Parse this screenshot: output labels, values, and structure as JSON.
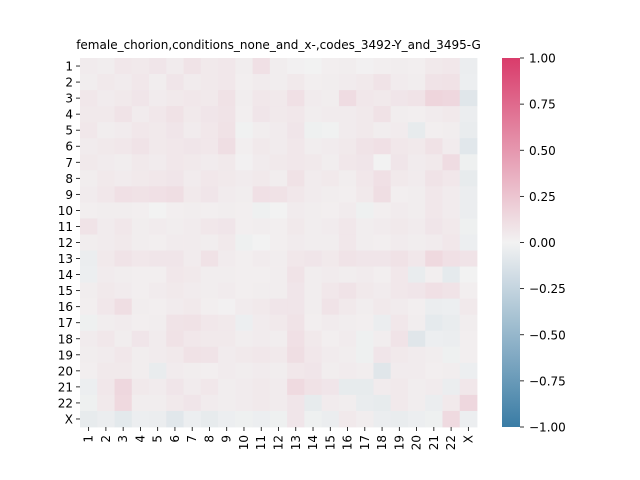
{
  "chart_data": {
    "type": "heatmap",
    "title": "female_chorion,conditions_none_and_x-,codes_3492-Y_and_3495-G",
    "xlabel": "",
    "ylabel": "",
    "x_categories": [
      "1",
      "2",
      "3",
      "4",
      "5",
      "6",
      "7",
      "8",
      "9",
      "10",
      "11",
      "12",
      "13",
      "14",
      "15",
      "16",
      "17",
      "18",
      "19",
      "20",
      "21",
      "22",
      "X"
    ],
    "y_categories": [
      "1",
      "2",
      "3",
      "4",
      "5",
      "6",
      "7",
      "8",
      "9",
      "10",
      "11",
      "12",
      "13",
      "14",
      "15",
      "16",
      "17",
      "18",
      "19",
      "20",
      "21",
      "22",
      "X"
    ],
    "colorbar": {
      "min": -1.0,
      "max": 1.0,
      "ticks": [
        -1.0,
        -0.75,
        -0.5,
        -0.25,
        0.0,
        0.25,
        0.5,
        0.75,
        1.0
      ],
      "tick_labels": [
        "−1.00",
        "−0.75",
        "−0.50",
        "−0.25",
        "0.00",
        "0.25",
        "0.50",
        "0.75",
        "1.00"
      ],
      "colors": {
        "low": "#3a7ca5",
        "mid": "#f2f2f2",
        "high": "#d93c6b"
      }
    },
    "values": [
      [
        0.04,
        0.03,
        0.06,
        0.05,
        0.07,
        0.04,
        0.08,
        0.05,
        0.06,
        0.03,
        0.1,
        0.03,
        0.01,
        0.0,
        0.02,
        0.03,
        0.01,
        0.02,
        0.03,
        0.02,
        0.05,
        0.06,
        -0.04
      ],
      [
        0.03,
        0.05,
        0.04,
        0.06,
        0.03,
        0.07,
        0.04,
        0.05,
        0.06,
        0.02,
        0.04,
        0.03,
        0.05,
        0.02,
        0.03,
        0.04,
        0.05,
        0.08,
        0.04,
        0.03,
        0.08,
        0.09,
        -0.03
      ],
      [
        0.06,
        0.04,
        0.05,
        0.07,
        0.04,
        0.05,
        0.06,
        0.05,
        0.09,
        0.03,
        0.06,
        0.05,
        0.1,
        0.04,
        0.03,
        0.12,
        0.06,
        0.05,
        0.07,
        0.08,
        0.16,
        0.15,
        -0.1
      ],
      [
        0.05,
        0.05,
        0.08,
        0.04,
        0.06,
        0.09,
        0.05,
        0.07,
        0.08,
        0.02,
        0.07,
        0.05,
        0.06,
        0.03,
        0.04,
        0.04,
        0.05,
        0.09,
        0.03,
        0.02,
        0.04,
        0.05,
        -0.04
      ],
      [
        0.06,
        0.03,
        0.04,
        0.06,
        0.05,
        0.07,
        0.04,
        0.06,
        0.09,
        -0.01,
        0.03,
        0.04,
        0.07,
        -0.02,
        -0.01,
        0.04,
        0.05,
        0.03,
        0.04,
        -0.06,
        0.02,
        0.03,
        -0.05
      ],
      [
        0.04,
        0.05,
        0.06,
        0.08,
        0.05,
        0.06,
        0.07,
        0.06,
        0.11,
        0.02,
        0.05,
        0.04,
        0.06,
        0.03,
        0.04,
        0.05,
        0.08,
        0.1,
        0.06,
        0.05,
        0.09,
        0.04,
        -0.09
      ],
      [
        0.05,
        0.04,
        0.03,
        0.05,
        0.04,
        0.06,
        0.05,
        0.04,
        0.05,
        0.01,
        0.04,
        0.05,
        0.06,
        0.05,
        0.03,
        0.06,
        0.07,
        0.0,
        0.07,
        0.04,
        0.05,
        0.12,
        -0.02
      ],
      [
        0.03,
        0.05,
        0.04,
        0.05,
        0.06,
        0.07,
        0.04,
        0.06,
        0.05,
        0.04,
        0.05,
        0.03,
        0.09,
        0.04,
        0.05,
        0.03,
        0.06,
        0.1,
        0.05,
        0.04,
        0.08,
        0.06,
        -0.06
      ],
      [
        0.04,
        0.06,
        0.1,
        0.09,
        0.1,
        0.11,
        0.05,
        0.07,
        0.04,
        0.03,
        0.1,
        0.09,
        0.06,
        0.04,
        0.03,
        0.02,
        0.05,
        0.11,
        0.02,
        0.03,
        0.06,
        0.04,
        -0.04
      ],
      [
        0.02,
        0.03,
        0.03,
        0.02,
        0.0,
        0.02,
        0.03,
        0.02,
        0.03,
        0.02,
        -0.02,
        0.0,
        0.04,
        0.03,
        0.02,
        0.04,
        -0.02,
        0.02,
        0.04,
        0.03,
        0.06,
        0.04,
        -0.04
      ],
      [
        0.08,
        0.04,
        0.06,
        0.03,
        0.04,
        0.03,
        0.04,
        0.06,
        0.07,
        0.02,
        0.03,
        0.02,
        0.05,
        0.03,
        0.04,
        0.06,
        0.03,
        0.04,
        0.05,
        0.04,
        0.07,
        0.05,
        -0.02
      ],
      [
        0.03,
        0.04,
        0.05,
        0.03,
        0.02,
        0.04,
        0.04,
        0.03,
        0.05,
        -0.02,
        0.0,
        0.02,
        0.04,
        0.03,
        0.03,
        0.06,
        0.03,
        0.02,
        0.04,
        0.03,
        0.04,
        0.06,
        -0.03
      ],
      [
        -0.04,
        0.05,
        0.08,
        0.06,
        0.07,
        0.07,
        0.04,
        0.09,
        0.04,
        0.02,
        0.04,
        0.03,
        0.06,
        0.07,
        0.05,
        0.08,
        0.07,
        0.07,
        0.09,
        0.06,
        0.14,
        0.1,
        0.08
      ],
      [
        -0.03,
        0.04,
        0.03,
        0.02,
        0.02,
        0.06,
        0.05,
        0.03,
        0.03,
        0.02,
        0.02,
        0.03,
        0.08,
        0.03,
        0.04,
        0.03,
        0.04,
        0.02,
        0.06,
        -0.05,
        0.02,
        -0.07,
        0.0
      ],
      [
        0.03,
        0.05,
        0.04,
        0.02,
        0.04,
        0.05,
        0.04,
        0.03,
        0.04,
        0.02,
        0.03,
        0.03,
        0.07,
        0.03,
        0.06,
        0.08,
        0.05,
        0.04,
        0.06,
        0.07,
        0.1,
        0.08,
        0.02
      ],
      [
        0.02,
        0.06,
        0.11,
        0.03,
        0.02,
        0.04,
        0.05,
        0.02,
        0.01,
        0.04,
        0.05,
        0.07,
        0.07,
        0.03,
        0.08,
        0.05,
        0.03,
        0.05,
        0.04,
        0.02,
        -0.04,
        -0.03,
        0.05
      ],
      [
        -0.02,
        0.03,
        0.04,
        0.02,
        0.03,
        0.08,
        0.09,
        0.06,
        0.05,
        -0.03,
        0.04,
        0.05,
        0.08,
        0.02,
        0.04,
        0.03,
        0.02,
        -0.04,
        0.06,
        0.03,
        -0.07,
        -0.05,
        0.03
      ],
      [
        0.04,
        0.06,
        0.03,
        0.07,
        0.04,
        0.09,
        0.06,
        0.05,
        0.05,
        0.03,
        0.04,
        0.03,
        0.1,
        0.05,
        0.02,
        0.04,
        -0.02,
        0.03,
        0.08,
        -0.1,
        -0.03,
        -0.04,
        0.02
      ],
      [
        0.03,
        0.04,
        0.06,
        0.03,
        0.04,
        0.05,
        0.09,
        0.08,
        0.04,
        0.05,
        0.06,
        0.05,
        0.11,
        0.06,
        0.04,
        0.03,
        -0.02,
        0.07,
        0.05,
        0.04,
        0.03,
        -0.02,
        0.02
      ],
      [
        0.02,
        0.05,
        0.05,
        0.03,
        -0.05,
        0.04,
        0.03,
        0.02,
        0.04,
        0.03,
        0.04,
        0.03,
        0.06,
        0.07,
        0.03,
        0.04,
        0.03,
        -0.1,
        0.04,
        0.04,
        0.02,
        0.03,
        -0.03
      ],
      [
        -0.03,
        0.06,
        0.15,
        0.05,
        0.04,
        0.07,
        0.04,
        0.06,
        0.03,
        0.04,
        0.05,
        0.04,
        0.13,
        0.09,
        0.07,
        -0.06,
        -0.06,
        0.04,
        0.05,
        0.03,
        0.04,
        -0.04,
        0.06
      ],
      [
        -0.02,
        0.05,
        0.14,
        0.03,
        0.03,
        0.05,
        0.07,
        0.04,
        0.03,
        0.04,
        0.05,
        0.04,
        0.07,
        -0.06,
        0.04,
        0.03,
        -0.05,
        -0.06,
        0.05,
        0.03,
        -0.04,
        0.05,
        0.15
      ],
      [
        -0.06,
        -0.04,
        -0.08,
        -0.03,
        -0.04,
        -0.09,
        -0.03,
        -0.06,
        -0.03,
        -0.02,
        -0.03,
        -0.02,
        0.07,
        -0.02,
        -0.04,
        0.05,
        0.03,
        -0.04,
        -0.05,
        -0.03,
        -0.02,
        0.13,
        -0.03
      ]
    ]
  }
}
